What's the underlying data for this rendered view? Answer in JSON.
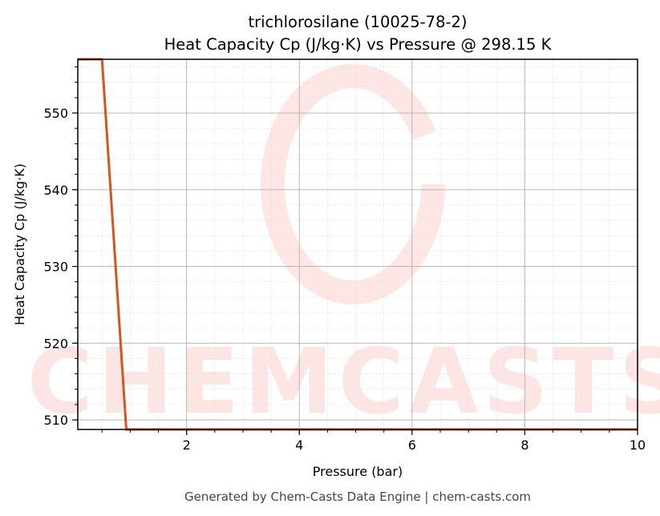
{
  "chart_data": {
    "type": "line",
    "title": "trichlorosilane (10025-78-2)",
    "subtitle": "Heat Capacity Cp (J/kg·K) vs Pressure @ 298.15 K",
    "xlabel": "Pressure (bar)",
    "ylabel": "Heat Capacity Cp (J/kg·K)",
    "xlim": [
      0.07,
      10
    ],
    "ylim": [
      508.75,
      557.0
    ],
    "xticks": [
      2,
      4,
      6,
      8,
      10
    ],
    "yticks": [
      510,
      520,
      530,
      540,
      550
    ],
    "grid": true,
    "legend": null,
    "series": [
      {
        "name": "Cp",
        "color": "#d9531e",
        "x": [
          0.07,
          0.5,
          0.93,
          10
        ],
        "y": [
          557.0,
          557.0,
          508.75,
          508.75
        ]
      }
    ]
  },
  "footer": "Generated by Chem-Casts Data Engine | chem-casts.com",
  "watermark": "CHEMCASTS",
  "colors": {
    "line": "#d9531e",
    "watermark": "#fde3e1",
    "grid": "#b0b0b0"
  }
}
